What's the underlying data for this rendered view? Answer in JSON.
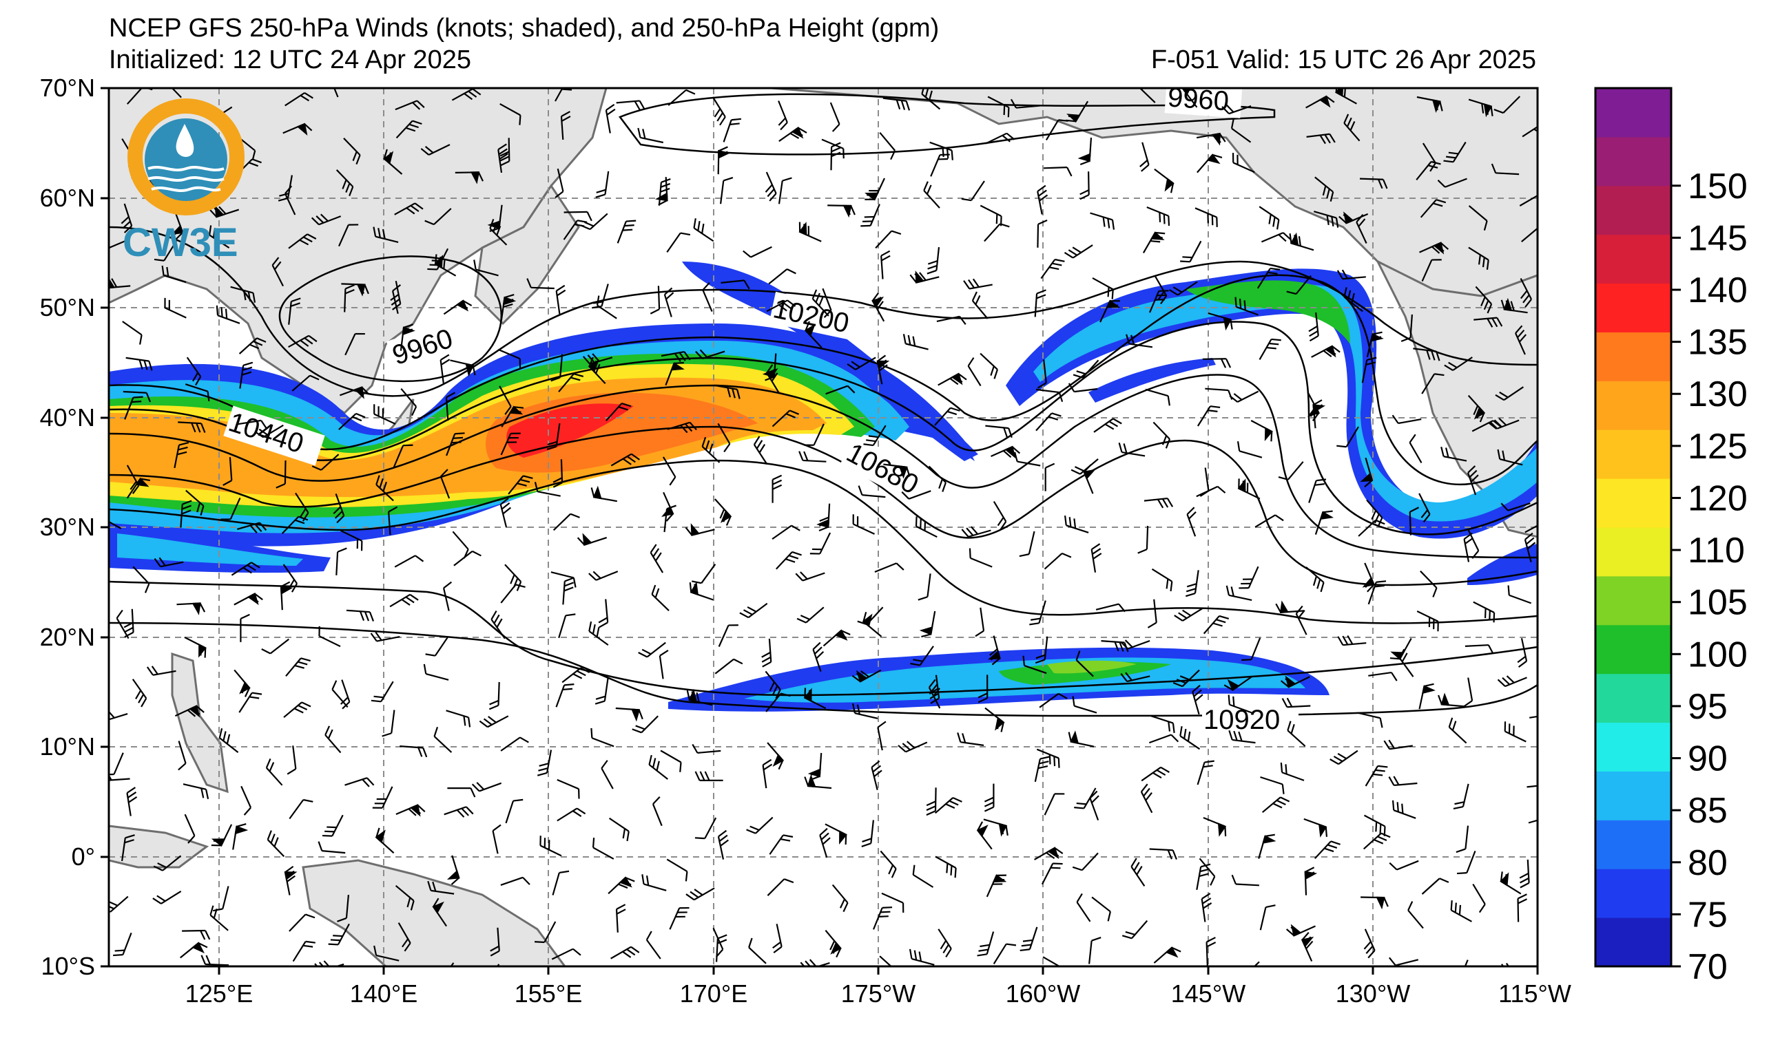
{
  "header": {
    "title": "NCEP GFS 250-hPa Winds (knots; shaded), and 250-hPa Height (gpm)",
    "initialized": "Initialized: 12 UTC 24 Apr 2025",
    "valid": "F-051  Valid: 15 UTC 26 Apr 2025"
  },
  "logo": {
    "text": "CW3E",
    "colors": [
      "#f4a51c",
      "#2f8fb8"
    ]
  },
  "axes": {
    "lat_labels": [
      "70°N",
      "60°N",
      "50°N",
      "40°N",
      "30°N",
      "20°N",
      "10°N",
      "0°",
      "10°S"
    ],
    "lon_labels": [
      "125°E",
      "140°E",
      "155°E",
      "170°E",
      "175°W",
      "160°W",
      "145°W",
      "130°W",
      "115°W"
    ],
    "lat_range": [
      -10,
      70
    ],
    "lon_range_deg_east": [
      115,
      245
    ],
    "grid": "dashed"
  },
  "colorbar": {
    "ticks": [
      "70",
      "75",
      "80",
      "85",
      "90",
      "95",
      "100",
      "105",
      "110",
      "120",
      "125",
      "130",
      "135",
      "140",
      "145",
      "150"
    ],
    "colors": [
      "#1c1fbf",
      "#1f3cf0",
      "#1e6ff7",
      "#20b8f5",
      "#22ece8",
      "#22d89a",
      "#1ebf2a",
      "#7fd325",
      "#e9ef22",
      "#fde623",
      "#ffc21c",
      "#ffa51c",
      "#ff7a1c",
      "#ff2222",
      "#d71f3a",
      "#b21e52",
      "#9a1e74",
      "#7e1d94"
    ]
  },
  "contours": {
    "labels": [
      "9960",
      "9960",
      "10200",
      "10440",
      "10680",
      "10920"
    ]
  }
}
